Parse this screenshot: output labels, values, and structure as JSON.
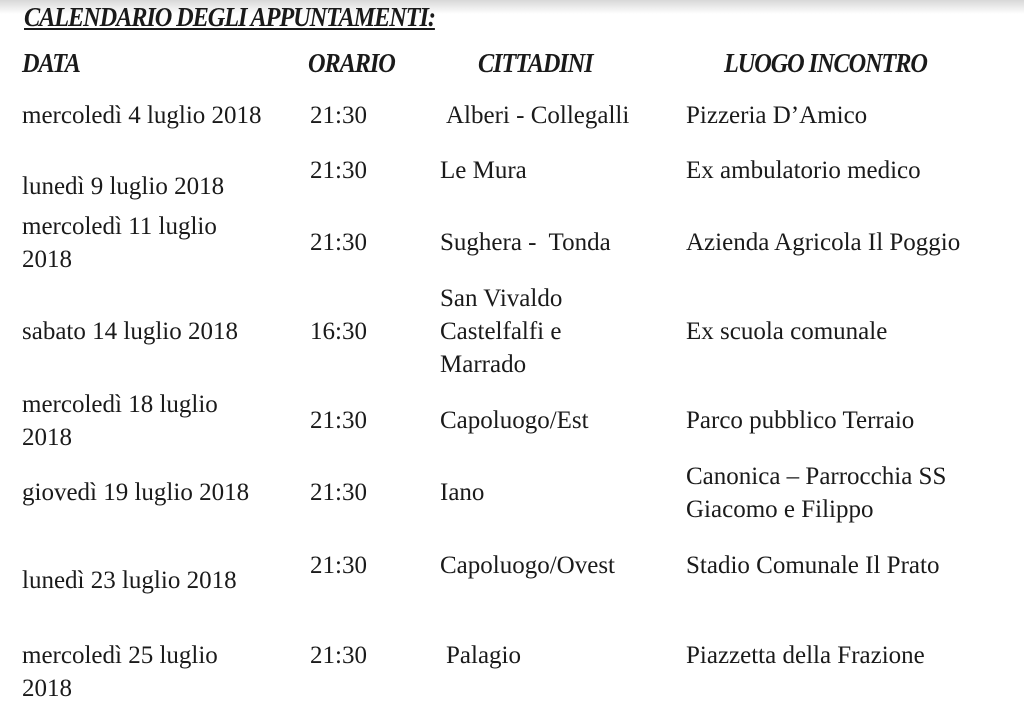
{
  "title": "CALENDARIO DEGLI APPUNTAMENTI:",
  "headers": {
    "data": "DATA",
    "orario": "ORARIO",
    "cittadini": "CITTADINI",
    "luogo": "LUOGO INCONTRO"
  },
  "rows": [
    {
      "data": "mercoledì 4 luglio 2018",
      "orario": "21:30",
      "cittadini": "Alberi - Collegalli",
      "luogo": "Pizzeria D’Amico"
    },
    {
      "data": "lunedì 9 luglio 2018",
      "orario": "21:30",
      "cittadini": "Le Mura",
      "luogo": "Ex ambulatorio medico"
    },
    {
      "data": "mercoledì 11 luglio 2018",
      "orario": "21:30",
      "cittadini": "Sughera -  Tonda",
      "luogo": "Azienda Agricola Il Poggio"
    },
    {
      "data": "sabato 14 luglio 2018",
      "orario": "16:30",
      "cittadini": "San Vivaldo Castelfalfi e Marrado",
      "luogo": "Ex scuola comunale"
    },
    {
      "data": "mercoledì 18 luglio 2018",
      "orario": "21:30",
      "cittadini": "Capoluogo/Est",
      "luogo": "Parco pubblico Terraio"
    },
    {
      "data": "giovedì 19 luglio 2018",
      "orario": "21:30",
      "cittadini": "Iano",
      "luogo": "Canonica – Parrocchia SS Giacomo e Filippo"
    },
    {
      "data": "lunedì 23 luglio 2018",
      "orario": "21:30",
      "cittadini": "Capoluogo/Ovest",
      "luogo": "Stadio Comunale Il Prato"
    },
    {
      "data": "mercoledì 25 luglio 2018",
      "orario": "21:30",
      "cittadini": "Palagio",
      "luogo": "Piazzetta della Frazione"
    }
  ]
}
